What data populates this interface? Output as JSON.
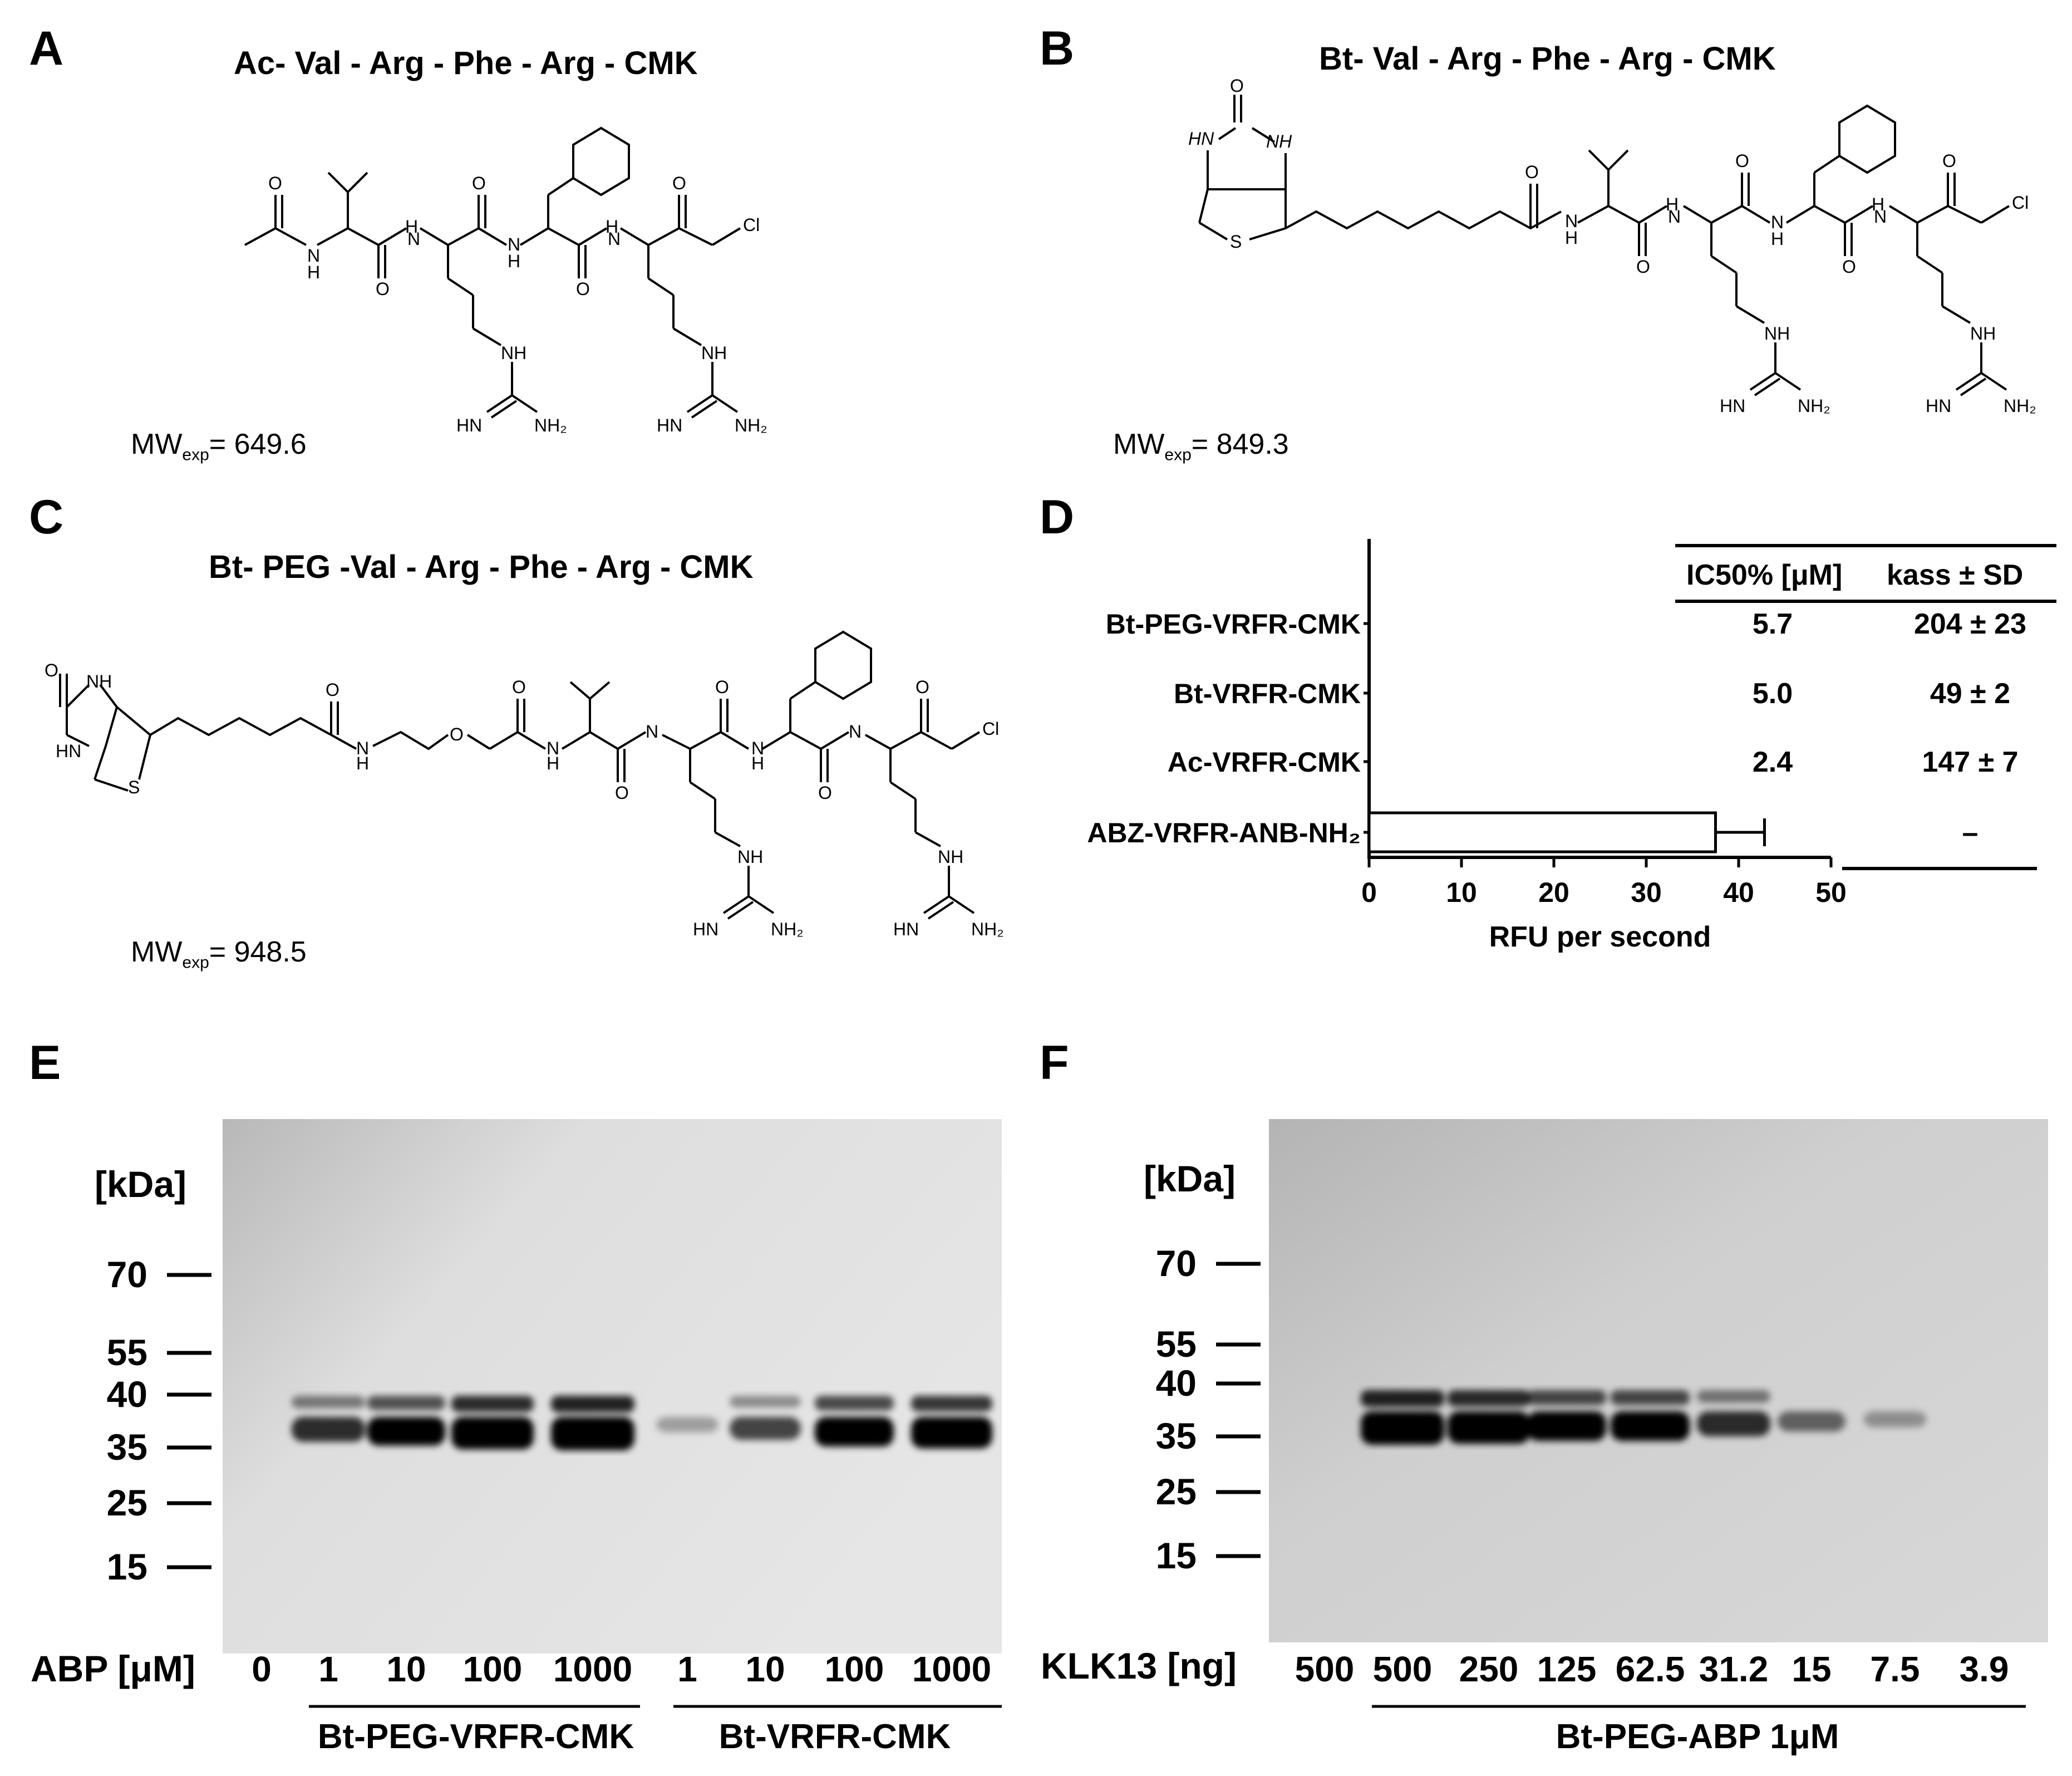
{
  "panels": {
    "A": {
      "letter": "A",
      "title": "Ac- Val - Arg - Phe - Arg - CMK",
      "mw_prefix": "MW",
      "mw_sub": "exp",
      "mw_value": "= 649.6"
    },
    "B": {
      "letter": "B",
      "title": "Bt- Val - Arg - Phe - Arg - CMK",
      "mw_prefix": "MW",
      "mw_sub": "exp",
      "mw_value": "= 849.3"
    },
    "C": {
      "letter": "C",
      "title": "Bt- PEG -Val - Arg - Phe - Arg - CMK",
      "mw_prefix": "MW",
      "mw_sub": "exp",
      "mw_value": "= 948.5"
    },
    "D": {
      "letter": "D"
    },
    "E": {
      "letter": "E"
    },
    "F": {
      "letter": "F"
    }
  },
  "atoms": {
    "H": "H",
    "N": "N",
    "O": "O",
    "S": "S",
    "Cl": "Cl",
    "NH": "NH",
    "HN": "HN",
    "NH2": "NH₂"
  },
  "chart_data": {
    "type": "bar",
    "orientation": "horizontal",
    "categories": [
      "Bt-PEG-VRFR-CMK",
      "Bt-VRFR-CMK",
      "Ac-VRFR-CMK",
      "ABZ-VRFR-ANB-NH₂"
    ],
    "values": [
      null,
      null,
      null,
      37.5
    ],
    "errors": [
      null,
      null,
      null,
      5.3
    ],
    "xlabel": "RFU per second",
    "xlim": [
      0,
      50
    ],
    "xticks": [
      "0",
      "10",
      "20",
      "30",
      "40",
      "50"
    ],
    "table": {
      "headers": [
        "IC50% [μM]",
        "kass ± SD"
      ],
      "rows": [
        {
          "ic50": "5.7",
          "kass": "204 ± 23"
        },
        {
          "ic50": "5.0",
          "kass": "49 ± 2"
        },
        {
          "ic50": "2.4",
          "kass": "147 ± 7"
        },
        {
          "ic50": "",
          "kass": "–"
        }
      ]
    }
  },
  "gel_E": {
    "unit_label": "[kDa]",
    "markers": [
      "70",
      "55",
      "40",
      "35",
      "25",
      "15"
    ],
    "conc_label": "ABP [μM]",
    "lanes": [
      "0",
      "1",
      "10",
      "100",
      "1000",
      "1",
      "10",
      "100",
      "1000"
    ],
    "group1": "Bt-PEG-VRFR-CMK",
    "group2": "Bt-VRFR-CMK",
    "band_intensity": [
      0,
      0.55,
      0.75,
      0.95,
      1.0,
      0.05,
      0.45,
      0.8,
      0.9
    ]
  },
  "gel_F": {
    "unit_label": "[kDa]",
    "markers": [
      "70",
      "55",
      "40",
      "35",
      "25",
      "15"
    ],
    "conc_label": "KLK13 [ng]",
    "lanes": [
      "500",
      "500",
      "250",
      "125",
      "62.5",
      "31.2",
      "15",
      "7.5",
      "3.9"
    ],
    "group": "Bt-PEG-ABP 1μM",
    "band_intensity": [
      0,
      1.0,
      0.95,
      0.8,
      0.8,
      0.55,
      0.3,
      0.08,
      0.0
    ]
  }
}
